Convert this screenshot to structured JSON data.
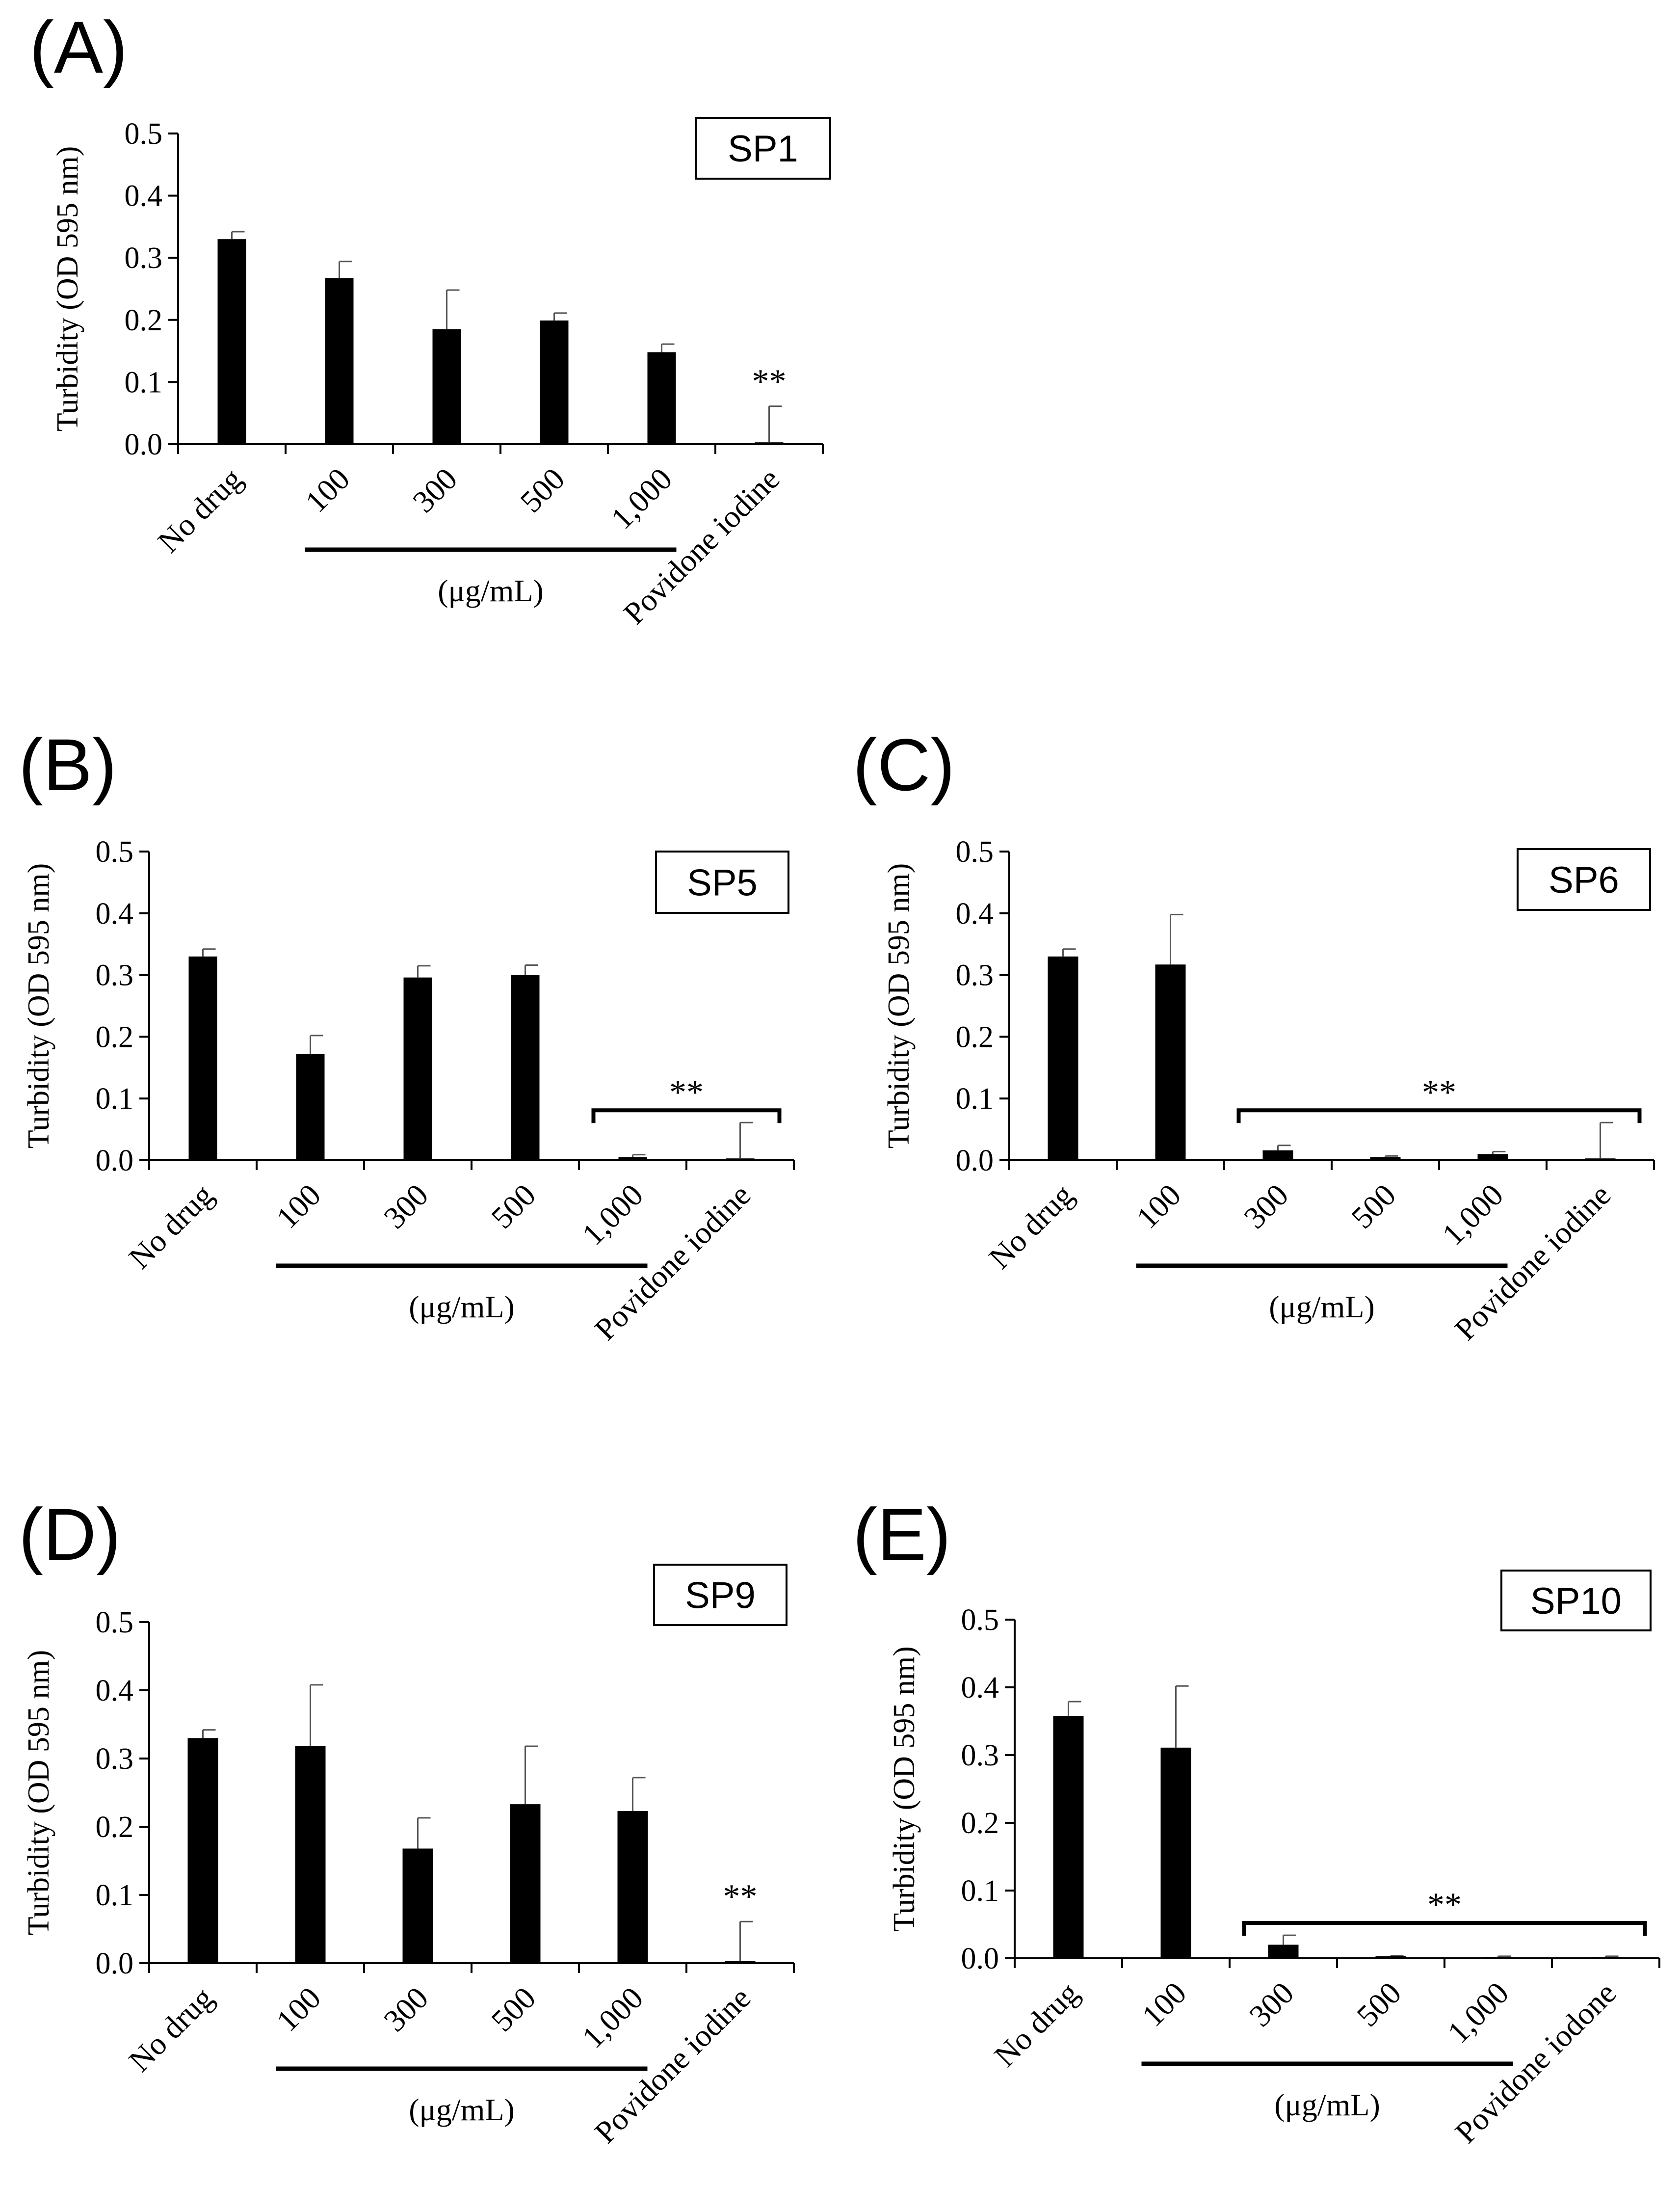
{
  "figure": {
    "panels": [
      {
        "letter": "(A)",
        "strain": "SP1",
        "bracket": false
      },
      {
        "letter": "(B)",
        "strain": "SP5",
        "bracket": true
      },
      {
        "letter": "(C)",
        "strain": "SP6",
        "bracket": true
      },
      {
        "letter": "(D)",
        "strain": "SP9",
        "bracket": false
      },
      {
        "letter": "(E)",
        "strain": "SP10",
        "bracket": true
      }
    ]
  },
  "chart_data": [
    {
      "type": "bar",
      "title": "SP1",
      "panel": "(A)",
      "categories": [
        "No drug",
        "100",
        "300",
        "500",
        "1,000",
        "Povidone iodine"
      ],
      "values": [
        0.33,
        0.267,
        0.185,
        0.199,
        0.148,
        0.003
      ],
      "errors": [
        0.012,
        0.027,
        0.063,
        0.012,
        0.013,
        0.058
      ],
      "significance": [
        {
          "label": "**",
          "categories": [
            5
          ]
        }
      ],
      "concentration_group": {
        "label": "(μg/mL)",
        "categories": [
          1,
          2,
          3,
          4
        ]
      },
      "ylabel": "Turbidity (OD 595 nm)",
      "yticks": [
        "0.0",
        "0.1",
        "0.2",
        "0.3",
        "0.4",
        "0.5"
      ],
      "ylim": [
        0,
        0.5
      ]
    },
    {
      "type": "bar",
      "title": "SP5",
      "panel": "(B)",
      "categories": [
        "No drug",
        "100",
        "300",
        "500",
        "1,000",
        "Povidone iodine"
      ],
      "values": [
        0.33,
        0.172,
        0.296,
        0.3,
        0.005,
        0.003
      ],
      "errors": [
        0.012,
        0.03,
        0.019,
        0.016,
        0.004,
        0.058
      ],
      "significance": [
        {
          "label": "**",
          "categories": [
            4,
            5
          ]
        }
      ],
      "concentration_group": {
        "label": "(μg/mL)",
        "categories": [
          1,
          2,
          3,
          4
        ]
      },
      "ylabel": "Turbidity (OD 595 nm)",
      "yticks": [
        "0.0",
        "0.1",
        "0.2",
        "0.3",
        "0.4",
        "0.5"
      ],
      "ylim": [
        0,
        0.5
      ]
    },
    {
      "type": "bar",
      "title": "SP6",
      "panel": "(C)",
      "categories": [
        "No drug",
        "100",
        "300",
        "500",
        "1,000",
        "Povidone iodine"
      ],
      "values": [
        0.33,
        0.317,
        0.016,
        0.005,
        0.01,
        0.003
      ],
      "errors": [
        0.012,
        0.081,
        0.008,
        0.002,
        0.004,
        0.058
      ],
      "significance": [
        {
          "label": "**",
          "categories": [
            2,
            3,
            4,
            5
          ]
        }
      ],
      "concentration_group": {
        "label": "(μg/mL)",
        "categories": [
          1,
          2,
          3,
          4
        ]
      },
      "ylabel": "Turbidity (OD 595 nm)",
      "yticks": [
        "0.0",
        "0.1",
        "0.2",
        "0.3",
        "0.4",
        "0.5"
      ],
      "ylim": [
        0,
        0.5
      ]
    },
    {
      "type": "bar",
      "title": "SP9",
      "panel": "(D)",
      "categories": [
        "No drug",
        "100",
        "300",
        "500",
        "1,000",
        "Povidone iodine"
      ],
      "values": [
        0.33,
        0.318,
        0.168,
        0.233,
        0.223,
        0.003
      ],
      "errors": [
        0.012,
        0.09,
        0.045,
        0.085,
        0.049,
        0.058
      ],
      "significance": [
        {
          "label": "**",
          "categories": [
            5
          ]
        }
      ],
      "concentration_group": {
        "label": "(μg/mL)",
        "categories": [
          1,
          2,
          3,
          4
        ]
      },
      "ylabel": "Turbidity (OD 595 nm)",
      "yticks": [
        "0.0",
        "0.1",
        "0.2",
        "0.3",
        "0.4",
        "0.5"
      ],
      "ylim": [
        0,
        0.5
      ]
    },
    {
      "type": "bar",
      "title": "SP10",
      "panel": "(E)",
      "categories": [
        "No drug",
        "100",
        "300",
        "500",
        "1,000",
        "Povidone iodone"
      ],
      "values": [
        0.358,
        0.311,
        0.02,
        0.003,
        0.002,
        0.002
      ],
      "errors": [
        0.021,
        0.091,
        0.014,
        0.001,
        0.001,
        0.001
      ],
      "significance": [
        {
          "label": "**",
          "categories": [
            2,
            3,
            4,
            5
          ]
        }
      ],
      "concentration_group": {
        "label": "(μg/mL)",
        "categories": [
          1,
          2,
          3,
          4
        ]
      },
      "ylabel": "Turbidity (OD 595 nm)",
      "yticks": [
        "0.0",
        "0.1",
        "0.2",
        "0.3",
        "0.4",
        "0.5"
      ],
      "ylim": [
        0,
        0.5
      ]
    }
  ]
}
